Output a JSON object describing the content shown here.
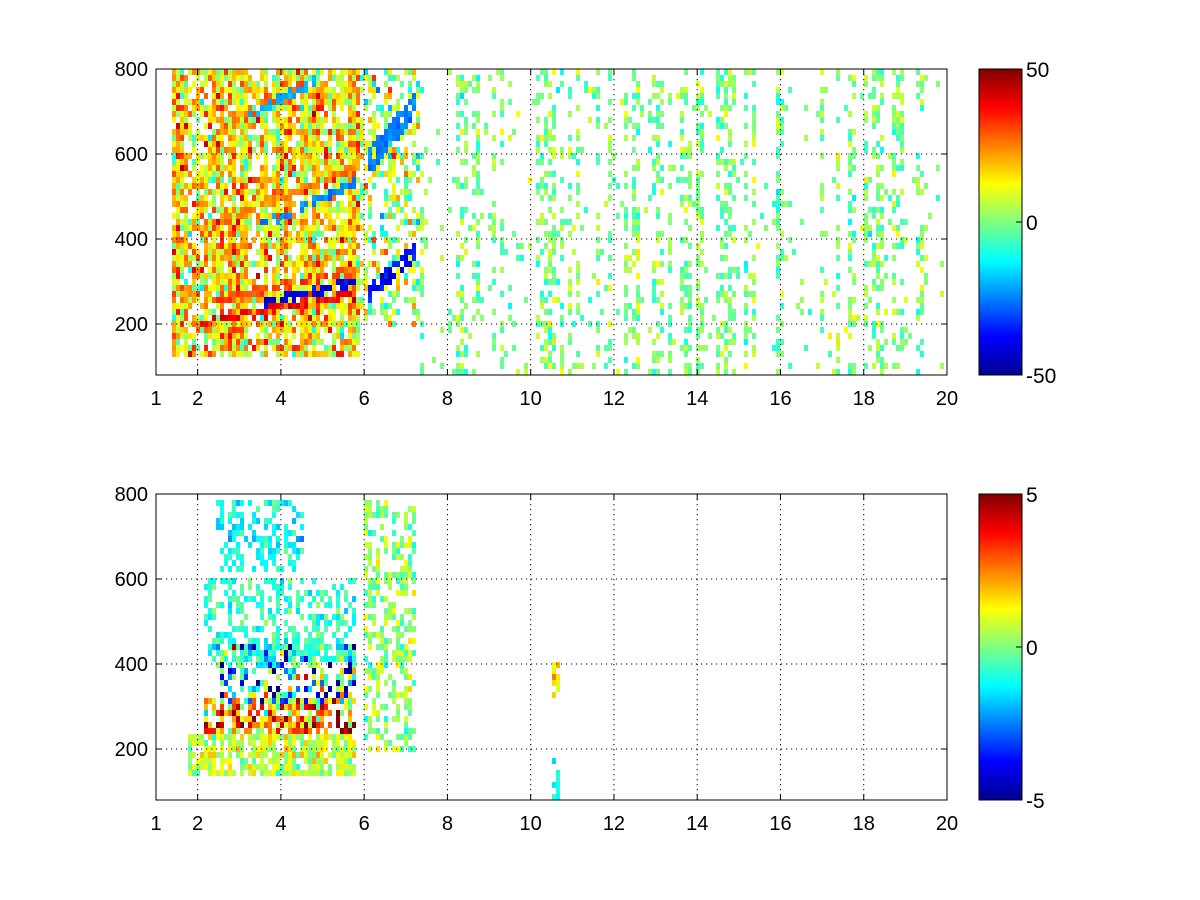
{
  "chart_data": [
    {
      "type": "heatmap",
      "title": "",
      "xlabel": "",
      "ylabel": "",
      "xlim": [
        1,
        20
      ],
      "ylim": [
        80,
        800
      ],
      "x_ticks": [
        1,
        2,
        4,
        6,
        8,
        10,
        12,
        14,
        16,
        18,
        20
      ],
      "y_ticks": [
        200,
        400,
        600,
        800
      ],
      "grid": true,
      "colormap": "jet",
      "clim": [
        -50,
        50
      ],
      "colorbar_ticks": [
        -50,
        0,
        50
      ],
      "features": [
        {
          "kind": "band",
          "x": [
            2.1,
            5.8
          ],
          "y0": 205,
          "slope": 18,
          "value": 38,
          "width": 9
        },
        {
          "kind": "band",
          "x": [
            2.3,
            5.8
          ],
          "y0": 255,
          "slope": 20,
          "value": 30,
          "width": 10
        },
        {
          "kind": "band",
          "x": [
            2.2,
            5.8
          ],
          "y0": 425,
          "slope": 40,
          "value": 25,
          "width": 10
        },
        {
          "kind": "band",
          "x": [
            2.3,
            4.6
          ],
          "y0": 640,
          "slope": 55,
          "value": 28,
          "width": 10
        },
        {
          "kind": "band",
          "x": [
            3.6,
            5.8
          ],
          "y0": 250,
          "slope": 22,
          "value": -40,
          "width": 10
        },
        {
          "kind": "band",
          "x": [
            3.5,
            5.8
          ],
          "y0": 430,
          "slope": 45,
          "value": -25,
          "width": 10
        },
        {
          "kind": "band",
          "x": [
            3.2,
            4.8
          ],
          "y0": 690,
          "slope": 50,
          "value": -20,
          "width": 10
        },
        {
          "kind": "band",
          "x": [
            6.1,
            7.2
          ],
          "y0": 270,
          "slope": 90,
          "value": -38,
          "width": 20
        },
        {
          "kind": "band",
          "x": [
            6.1,
            7.2
          ],
          "y0": 580,
          "slope": 120,
          "value": -25,
          "width": 30
        },
        {
          "kind": "fill",
          "x": [
            1.4,
            5.9
          ],
          "y": [
            120,
            800
          ],
          "value": 15,
          "spread": 20,
          "density": 0.75
        },
        {
          "kind": "fill",
          "x": [
            5.9,
            7.3
          ],
          "y": [
            200,
            800
          ],
          "value": 5,
          "spread": 20,
          "density": 0.45
        },
        {
          "kind": "noise",
          "x": [
            7.3,
            20
          ],
          "y": [
            80,
            800
          ],
          "value": 0,
          "spread": 10,
          "density": 0.12
        }
      ]
    },
    {
      "type": "heatmap",
      "title": "",
      "xlabel": "",
      "ylabel": "",
      "xlim": [
        1,
        20
      ],
      "ylim": [
        80,
        800
      ],
      "x_ticks": [
        1,
        2,
        4,
        6,
        8,
        10,
        12,
        14,
        16,
        18,
        20
      ],
      "y_ticks": [
        200,
        400,
        600,
        800
      ],
      "grid": true,
      "colormap": "jet",
      "clim": [
        -5,
        5
      ],
      "colorbar_ticks": [
        -5,
        0,
        5
      ],
      "features": [
        {
          "kind": "fill",
          "x": [
            1.8,
            5.8
          ],
          "y": [
            140,
            240
          ],
          "value": 0.8,
          "spread": 1.2,
          "density": 0.8
        },
        {
          "kind": "fill",
          "x": [
            2.2,
            5.8
          ],
          "y": [
            240,
            320
          ],
          "value": 2.5,
          "spread": 3.0,
          "density": 0.7
        },
        {
          "kind": "fill",
          "x": [
            2.4,
            5.8
          ],
          "y": [
            300,
            450
          ],
          "value": -1.5,
          "spread": 4.0,
          "density": 0.55
        },
        {
          "kind": "fill",
          "x": [
            2.2,
            5.8
          ],
          "y": [
            400,
            600
          ],
          "value": -0.8,
          "spread": 0.9,
          "density": 0.4
        },
        {
          "kind": "fill",
          "x": [
            2.4,
            4.6
          ],
          "y": [
            620,
            790
          ],
          "value": -1.2,
          "spread": 0.8,
          "density": 0.45
        },
        {
          "kind": "fill",
          "x": [
            6.0,
            7.2
          ],
          "y": [
            200,
            790
          ],
          "value": 0.2,
          "spread": 1.2,
          "density": 0.5
        },
        {
          "kind": "fill",
          "x": [
            10.55,
            10.7
          ],
          "y": [
            320,
            400
          ],
          "value": 1.5,
          "spread": 0.8,
          "density": 0.8
        },
        {
          "kind": "fill",
          "x": [
            10.55,
            10.7
          ],
          "y": [
            80,
            180
          ],
          "value": -1.0,
          "spread": 0.6,
          "density": 0.7
        }
      ]
    }
  ]
}
